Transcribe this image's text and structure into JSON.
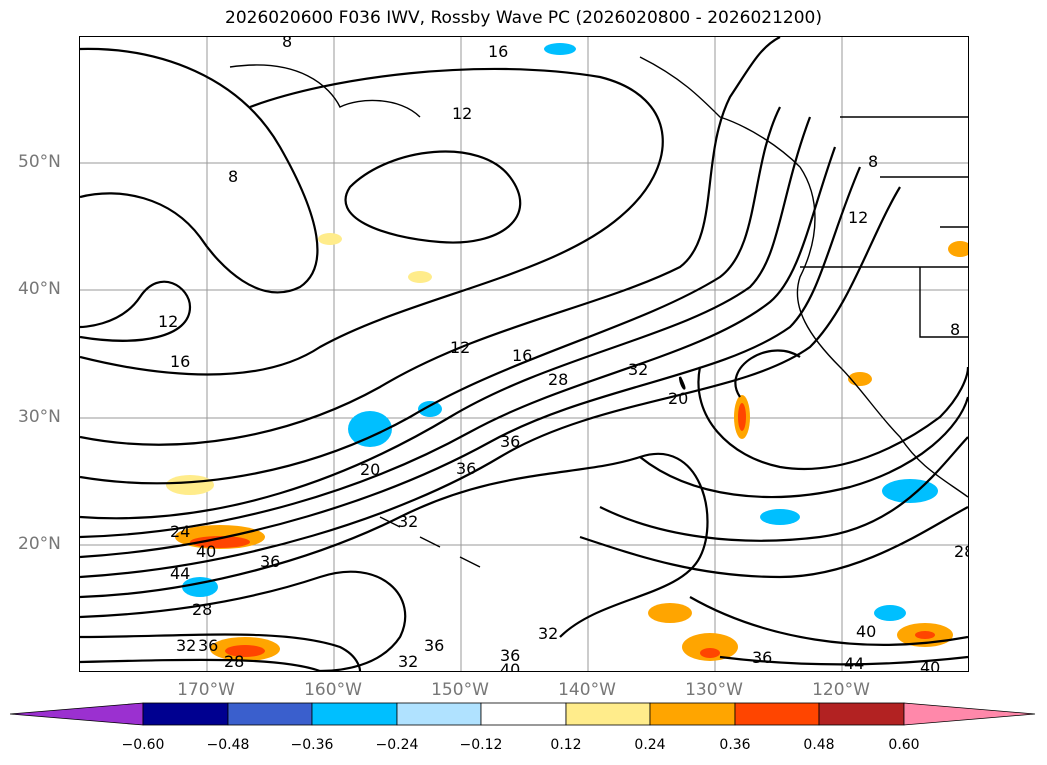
{
  "title": "2026020600 F036 IWV, Rossby Wave PC (2026020800 - 2026021200)",
  "lat_labels": [
    "50°N",
    "40°N",
    "30°N",
    "20°N"
  ],
  "lon_labels": [
    "170°W",
    "160°W",
    "150°W",
    "140°W",
    "130°W",
    "120°W"
  ],
  "contour_labels": [
    "8",
    "16",
    "12",
    "8",
    "12",
    "16",
    "12",
    "16",
    "28",
    "32",
    "20",
    "20",
    "36",
    "36",
    "32",
    "24",
    "40",
    "44",
    "36",
    "28",
    "32",
    "36",
    "28",
    "32",
    "36",
    "36",
    "40",
    "36",
    "40",
    "44",
    "40",
    "28",
    "32",
    "12",
    "8",
    "8"
  ],
  "colorbar": {
    "ticks": [
      "−0.60",
      "−0.48",
      "−0.36",
      "−0.24",
      "−0.12",
      "0.12",
      "0.24",
      "0.36",
      "0.48",
      "0.60"
    ],
    "colors": [
      "#9b30d0",
      "#000090",
      "#3a5fcd",
      "#00bfff",
      "#b0e2ff",
      "#ffffff",
      "#ffec8b",
      "#ffa500",
      "#ff4500",
      "#b22222",
      "#ff88aa"
    ]
  }
}
